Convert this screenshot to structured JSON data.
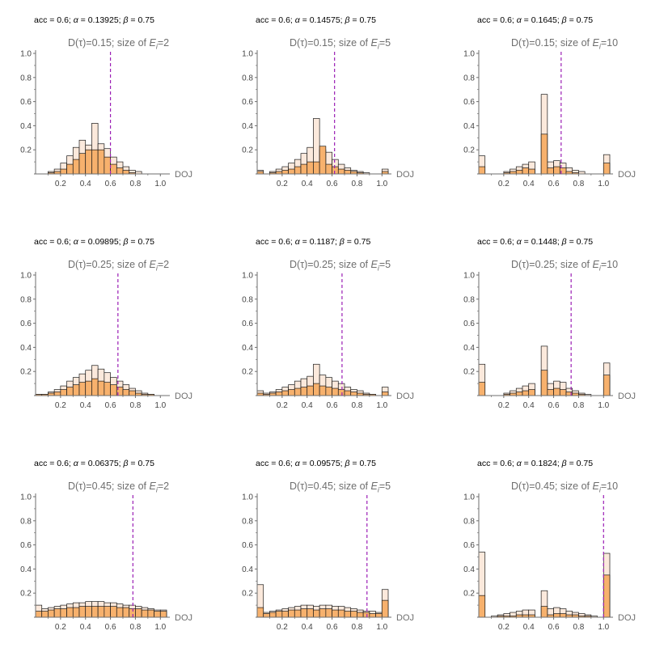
{
  "chart_data": [
    {
      "type": "bar",
      "acc": "0.6",
      "alpha": "0.13925",
      "beta": "0.75",
      "d": "0.15",
      "size": "2",
      "xlabel": "DOJ",
      "ylim": [
        0,
        1.0
      ],
      "xlim": [
        0,
        1.05
      ],
      "bins": [
        0.025,
        0.075,
        0.125,
        0.175,
        0.225,
        0.275,
        0.325,
        0.375,
        0.425,
        0.475,
        0.525,
        0.575,
        0.625,
        0.675,
        0.725,
        0.775,
        0.825,
        0.875,
        0.925,
        0.975,
        1.025
      ],
      "series": [
        {
          "values": [
            0.0,
            0.0,
            0.01,
            0.02,
            0.04,
            0.08,
            0.12,
            0.17,
            0.2,
            0.2,
            0.2,
            0.14,
            0.08,
            0.05,
            0.03,
            0.01,
            0.0,
            0.0,
            0.0,
            0.0,
            0.0
          ]
        },
        {
          "values": [
            0.0,
            0.0,
            0.02,
            0.04,
            0.09,
            0.15,
            0.22,
            0.28,
            0.24,
            0.42,
            0.25,
            0.21,
            0.14,
            0.1,
            0.06,
            0.03,
            0.02,
            0.0,
            0.0,
            0.0,
            0.0
          ]
        }
      ],
      "marker": 0.6,
      "xticks": [
        "0.2",
        "0.4",
        "0.6",
        "0.8",
        "1.0"
      ],
      "yticks": [
        "0.2",
        "0.4",
        "0.6",
        "0.8",
        "1.0"
      ]
    },
    {
      "type": "bar",
      "acc": "0.6",
      "alpha": "0.14575",
      "beta": "0.75",
      "d": "0.15",
      "size": "5",
      "xlabel": "DOJ",
      "ylim": [
        0,
        1.0
      ],
      "xlim": [
        0,
        1.05
      ],
      "bins": [
        0.025,
        0.075,
        0.125,
        0.175,
        0.225,
        0.275,
        0.325,
        0.375,
        0.425,
        0.475,
        0.525,
        0.575,
        0.625,
        0.675,
        0.725,
        0.775,
        0.825,
        0.875,
        0.925,
        0.975,
        1.025
      ],
      "series": [
        {
          "values": [
            0.02,
            0.0,
            0.01,
            0.02,
            0.03,
            0.04,
            0.06,
            0.08,
            0.1,
            0.1,
            0.23,
            0.08,
            0.06,
            0.04,
            0.03,
            0.02,
            0.01,
            0.0,
            0.0,
            0.0,
            0.02
          ]
        },
        {
          "values": [
            0.03,
            0.0,
            0.02,
            0.04,
            0.06,
            0.09,
            0.12,
            0.17,
            0.22,
            0.46,
            0.2,
            0.18,
            0.12,
            0.08,
            0.05,
            0.03,
            0.02,
            0.01,
            0.0,
            0.0,
            0.04
          ]
        }
      ],
      "marker": 0.62,
      "xticks": [
        "0.2",
        "0.4",
        "0.6",
        "0.8",
        "1.0"
      ],
      "yticks": [
        "0.2",
        "0.4",
        "0.6",
        "0.8",
        "1.0"
      ]
    },
    {
      "type": "bar",
      "acc": "0.6",
      "alpha": "0.1645",
      "beta": "0.75",
      "d": "0.15",
      "size": "10",
      "xlabel": "DOJ",
      "ylim": [
        0,
        1.0
      ],
      "xlim": [
        0,
        1.05
      ],
      "bins": [
        0.025,
        0.075,
        0.125,
        0.175,
        0.225,
        0.275,
        0.325,
        0.375,
        0.425,
        0.475,
        0.525,
        0.575,
        0.625,
        0.675,
        0.725,
        0.775,
        0.825,
        0.875,
        0.925,
        0.975,
        1.025
      ],
      "series": [
        {
          "values": [
            0.06,
            0.0,
            0.0,
            0.0,
            0.01,
            0.02,
            0.03,
            0.05,
            0.04,
            0.0,
            0.33,
            0.05,
            0.06,
            0.05,
            0.02,
            0.01,
            0.0,
            0.0,
            0.0,
            0.0,
            0.09
          ]
        },
        {
          "values": [
            0.15,
            0.0,
            0.0,
            0.0,
            0.02,
            0.04,
            0.06,
            0.08,
            0.1,
            0.0,
            0.66,
            0.1,
            0.11,
            0.09,
            0.05,
            0.03,
            0.02,
            0.0,
            0.0,
            0.0,
            0.16
          ]
        }
      ],
      "marker": 0.66,
      "xticks": [
        "0.2",
        "0.4",
        "0.6",
        "0.8",
        "1.0"
      ],
      "yticks": [
        "0.2",
        "0.4",
        "0.6",
        "0.8",
        "1.0"
      ]
    },
    {
      "type": "bar",
      "acc": "0.6",
      "alpha": "0.09895",
      "beta": "0.75",
      "d": "0.25",
      "size": "2",
      "xlabel": "DOJ",
      "ylim": [
        0,
        1.0
      ],
      "xlim": [
        0,
        1.05
      ],
      "bins": [
        0.025,
        0.075,
        0.125,
        0.175,
        0.225,
        0.275,
        0.325,
        0.375,
        0.425,
        0.475,
        0.525,
        0.575,
        0.625,
        0.675,
        0.725,
        0.775,
        0.825,
        0.875,
        0.925,
        0.975,
        1.025
      ],
      "series": [
        {
          "values": [
            0.01,
            0.01,
            0.02,
            0.03,
            0.05,
            0.07,
            0.09,
            0.11,
            0.12,
            0.14,
            0.12,
            0.11,
            0.09,
            0.07,
            0.05,
            0.04,
            0.02,
            0.01,
            0.01,
            0.0,
            0.0
          ]
        },
        {
          "values": [
            0.01,
            0.01,
            0.03,
            0.05,
            0.08,
            0.12,
            0.15,
            0.18,
            0.21,
            0.25,
            0.22,
            0.19,
            0.15,
            0.12,
            0.09,
            0.06,
            0.04,
            0.02,
            0.01,
            0.0,
            0.0
          ]
        }
      ],
      "marker": 0.66,
      "xticks": [
        "0.2",
        "0.4",
        "0.6",
        "0.8",
        "1.0"
      ],
      "yticks": [
        "0.2",
        "0.4",
        "0.6",
        "0.8",
        "1.0"
      ]
    },
    {
      "type": "bar",
      "acc": "0.6",
      "alpha": "0.1187",
      "beta": "0.75",
      "d": "0.25",
      "size": "5",
      "xlabel": "DOJ",
      "ylim": [
        0,
        1.0
      ],
      "xlim": [
        0,
        1.05
      ],
      "bins": [
        0.025,
        0.075,
        0.125,
        0.175,
        0.225,
        0.275,
        0.325,
        0.375,
        0.425,
        0.475,
        0.525,
        0.575,
        0.625,
        0.675,
        0.725,
        0.775,
        0.825,
        0.875,
        0.925,
        0.975,
        1.025
      ],
      "series": [
        {
          "values": [
            0.02,
            0.01,
            0.02,
            0.03,
            0.04,
            0.05,
            0.06,
            0.07,
            0.08,
            0.1,
            0.08,
            0.07,
            0.06,
            0.05,
            0.04,
            0.03,
            0.02,
            0.01,
            0.01,
            0.0,
            0.03
          ]
        },
        {
          "values": [
            0.04,
            0.02,
            0.03,
            0.05,
            0.07,
            0.09,
            0.12,
            0.14,
            0.16,
            0.26,
            0.17,
            0.15,
            0.12,
            0.1,
            0.07,
            0.05,
            0.04,
            0.02,
            0.01,
            0.0,
            0.07
          ]
        }
      ],
      "marker": 0.68,
      "xticks": [
        "0.2",
        "0.4",
        "0.6",
        "0.8",
        "1.0"
      ],
      "yticks": [
        "0.2",
        "0.4",
        "0.6",
        "0.8",
        "1.0"
      ]
    },
    {
      "type": "bar",
      "acc": "0.6",
      "alpha": "0.1448",
      "beta": "0.75",
      "d": "0.25",
      "size": "10",
      "xlabel": "DOJ",
      "ylim": [
        0,
        1.0
      ],
      "xlim": [
        0,
        1.05
      ],
      "bins": [
        0.025,
        0.075,
        0.125,
        0.175,
        0.225,
        0.275,
        0.325,
        0.375,
        0.425,
        0.475,
        0.525,
        0.575,
        0.625,
        0.675,
        0.725,
        0.775,
        0.825,
        0.875,
        0.925,
        0.975,
        1.025
      ],
      "series": [
        {
          "values": [
            0.11,
            0.0,
            0.0,
            0.0,
            0.01,
            0.02,
            0.03,
            0.04,
            0.05,
            0.0,
            0.21,
            0.05,
            0.06,
            0.05,
            0.03,
            0.02,
            0.01,
            0.0,
            0.0,
            0.0,
            0.17
          ]
        },
        {
          "values": [
            0.26,
            0.0,
            0.0,
            0.0,
            0.02,
            0.04,
            0.06,
            0.08,
            0.1,
            0.0,
            0.41,
            0.1,
            0.12,
            0.11,
            0.06,
            0.04,
            0.02,
            0.01,
            0.0,
            0.0,
            0.27
          ]
        }
      ],
      "marker": 0.74,
      "xticks": [
        "0.2",
        "0.4",
        "0.6",
        "0.8",
        "1.0"
      ],
      "yticks": [
        "0.2",
        "0.4",
        "0.6",
        "0.8",
        "1.0"
      ]
    },
    {
      "type": "bar",
      "acc": "0.6",
      "alpha": "0.06375",
      "beta": "0.75",
      "d": "0.45",
      "size": "2",
      "xlabel": "DOJ",
      "ylim": [
        0,
        1.0
      ],
      "xlim": [
        0,
        1.05
      ],
      "bins": [
        0.025,
        0.075,
        0.125,
        0.175,
        0.225,
        0.275,
        0.325,
        0.375,
        0.425,
        0.475,
        0.525,
        0.575,
        0.625,
        0.675,
        0.725,
        0.775,
        0.825,
        0.875,
        0.925,
        0.975,
        1.025
      ],
      "series": [
        {
          "values": [
            0.05,
            0.05,
            0.06,
            0.07,
            0.07,
            0.08,
            0.08,
            0.09,
            0.09,
            0.09,
            0.09,
            0.09,
            0.09,
            0.08,
            0.08,
            0.07,
            0.07,
            0.06,
            0.06,
            0.05,
            0.05
          ]
        },
        {
          "values": [
            0.1,
            0.07,
            0.08,
            0.09,
            0.1,
            0.11,
            0.12,
            0.12,
            0.13,
            0.13,
            0.13,
            0.12,
            0.12,
            0.11,
            0.1,
            0.1,
            0.09,
            0.08,
            0.07,
            0.06,
            0.06
          ]
        }
      ],
      "marker": 0.78,
      "xticks": [
        "0.2",
        "0.4",
        "0.6",
        "0.8",
        "1.0"
      ],
      "yticks": [
        "0.2",
        "0.4",
        "0.6",
        "0.8",
        "1.0"
      ]
    },
    {
      "type": "bar",
      "acc": "0.6",
      "alpha": "0.09575",
      "beta": "0.75",
      "d": "0.45",
      "size": "5",
      "xlabel": "DOJ",
      "ylim": [
        0,
        1.0
      ],
      "xlim": [
        0,
        1.05
      ],
      "bins": [
        0.025,
        0.075,
        0.125,
        0.175,
        0.225,
        0.275,
        0.325,
        0.375,
        0.425,
        0.475,
        0.525,
        0.575,
        0.625,
        0.675,
        0.725,
        0.775,
        0.825,
        0.875,
        0.925,
        0.975,
        1.025
      ],
      "series": [
        {
          "values": [
            0.08,
            0.03,
            0.04,
            0.05,
            0.05,
            0.06,
            0.06,
            0.07,
            0.07,
            0.06,
            0.07,
            0.07,
            0.06,
            0.06,
            0.05,
            0.05,
            0.04,
            0.04,
            0.03,
            0.03,
            0.14
          ]
        },
        {
          "values": [
            0.27,
            0.04,
            0.05,
            0.06,
            0.07,
            0.08,
            0.09,
            0.1,
            0.1,
            0.09,
            0.1,
            0.1,
            0.09,
            0.09,
            0.08,
            0.07,
            0.06,
            0.05,
            0.05,
            0.04,
            0.23
          ]
        }
      ],
      "marker": 0.88,
      "xticks": [
        "0.2",
        "0.4",
        "0.6",
        "0.8",
        "1.0"
      ],
      "yticks": [
        "0.2",
        "0.4",
        "0.6",
        "0.8",
        "1.0"
      ]
    },
    {
      "type": "bar",
      "acc": "0.6",
      "alpha": "0.1824",
      "beta": "0.75",
      "d": "0.45",
      "size": "10",
      "xlabel": "DOJ",
      "ylim": [
        0,
        1.0
      ],
      "xlim": [
        0,
        1.05
      ],
      "bins": [
        0.025,
        0.075,
        0.125,
        0.175,
        0.225,
        0.275,
        0.325,
        0.375,
        0.425,
        0.475,
        0.525,
        0.575,
        0.625,
        0.675,
        0.725,
        0.775,
        0.825,
        0.875,
        0.925,
        0.975,
        1.025
      ],
      "series": [
        {
          "values": [
            0.18,
            0.0,
            0.0,
            0.01,
            0.01,
            0.01,
            0.02,
            0.02,
            0.02,
            0.0,
            0.09,
            0.02,
            0.03,
            0.03,
            0.02,
            0.02,
            0.01,
            0.01,
            0.0,
            0.0,
            0.35
          ]
        },
        {
          "values": [
            0.54,
            0.0,
            0.01,
            0.02,
            0.03,
            0.04,
            0.05,
            0.06,
            0.06,
            0.0,
            0.22,
            0.07,
            0.08,
            0.07,
            0.05,
            0.04,
            0.03,
            0.02,
            0.01,
            0.0,
            0.53
          ]
        }
      ],
      "marker": 1.0,
      "xticks": [
        "0.2",
        "0.4",
        "0.6",
        "0.8",
        "1.0"
      ],
      "yticks": [
        "0.2",
        "0.4",
        "0.6",
        "0.8",
        "1.0"
      ]
    }
  ],
  "colors": {
    "light": "#fbe9dc",
    "dark": "#f7b16d",
    "edge": "#1a1a1a",
    "marker": "#9b1fb5",
    "axis": "#6e6e6e"
  },
  "labels": {
    "acc_prefix": "acc = ",
    "alpha_sep": "; ",
    "alpha_sym": "α",
    "beta_sym": "β",
    "eq": " = ",
    "title_d": "D(τ)=",
    "title_size": "; size of ",
    "title_e": "E",
    "title_i": "i",
    "eq2": "="
  }
}
